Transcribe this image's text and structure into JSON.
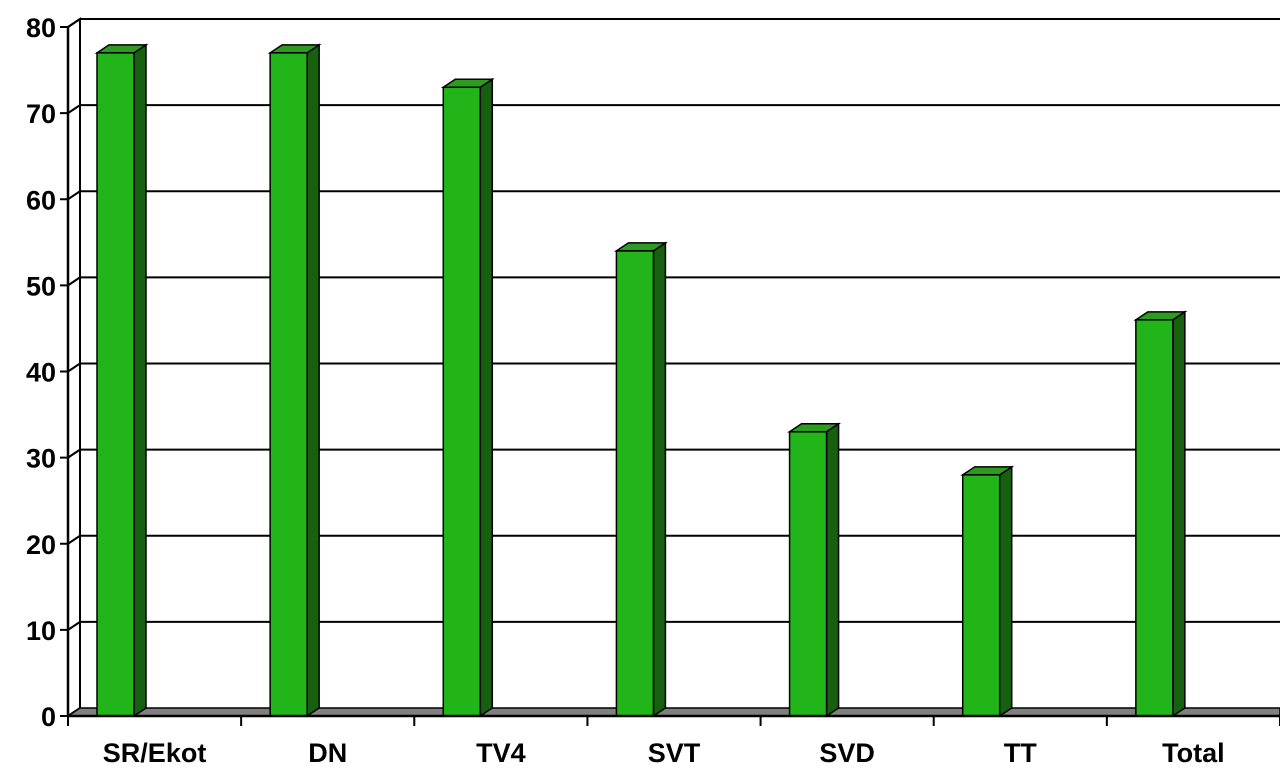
{
  "chart_data": {
    "type": "bar",
    "style": "3d",
    "title": "",
    "xlabel": "",
    "ylabel": "",
    "categories": [
      "SR/Ekot",
      "DN",
      "TV4",
      "SVT",
      "SVD",
      "TT",
      "Total"
    ],
    "values": [
      77,
      77,
      73,
      54,
      33,
      28,
      46
    ],
    "ylim": [
      0,
      80
    ],
    "yticks": [
      0,
      10,
      20,
      30,
      40,
      50,
      60,
      70,
      80
    ],
    "grid": true,
    "legend": "none",
    "colors": {
      "bar_front": "#22b51a",
      "bar_side": "#16600f",
      "bar_top": "#2d9a22",
      "floor": "#808080",
      "gridline": "#000000"
    }
  }
}
